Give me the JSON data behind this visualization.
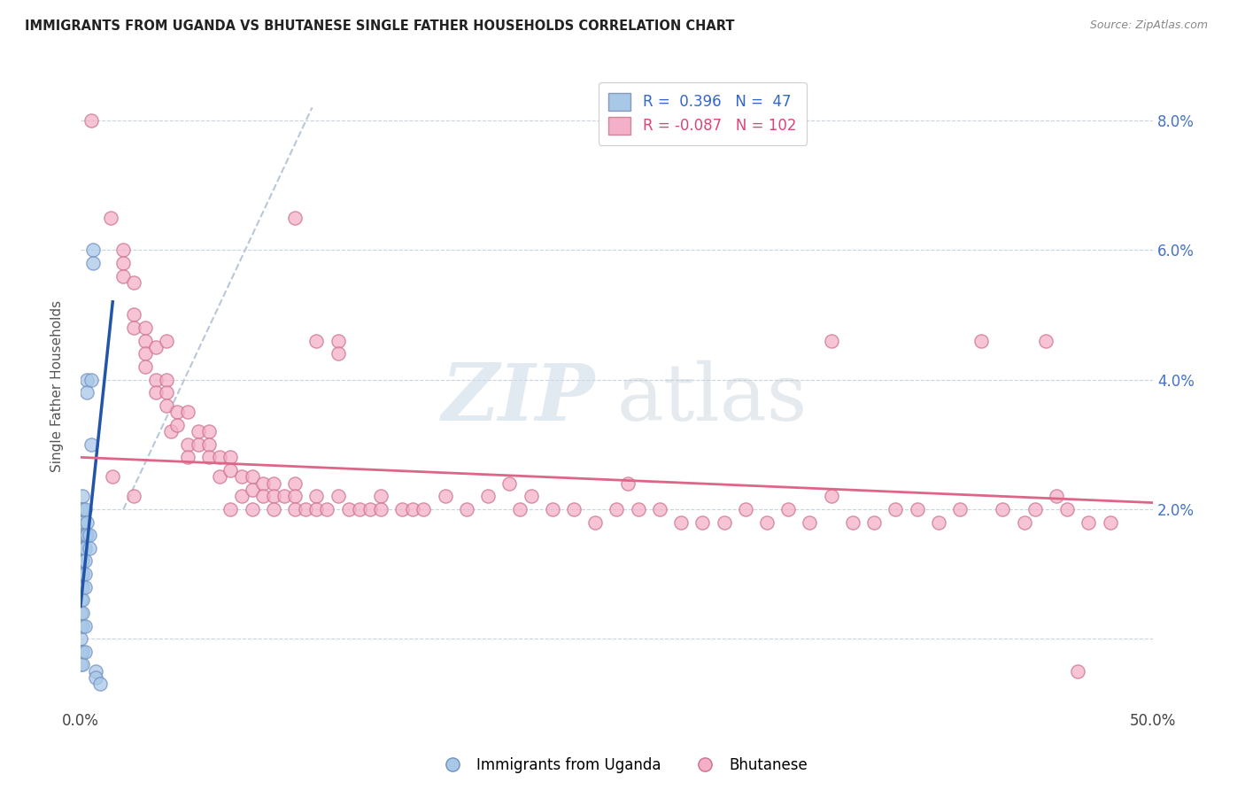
{
  "title": "IMMIGRANTS FROM UGANDA VS BHUTANESE SINGLE FATHER HOUSEHOLDS CORRELATION CHART",
  "source": "Source: ZipAtlas.com",
  "ylabel": "Single Father Households",
  "xlim": [
    0.0,
    0.5
  ],
  "ylim": [
    -0.01,
    0.088
  ],
  "blue_color": "#a8c8e8",
  "pink_color": "#f4b0c8",
  "blue_line_color": "#2255aa",
  "pink_line_color": "#dd6688",
  "dashed_line_color": "#b8c8d8",
  "watermark_zip": "ZIP",
  "watermark_atlas": "atlas",
  "uganda_points": [
    [
      0.0,
      0.02
    ],
    [
      0.0,
      0.018
    ],
    [
      0.0,
      0.016
    ],
    [
      0.0,
      0.014
    ],
    [
      0.0,
      0.012
    ],
    [
      0.0,
      0.01
    ],
    [
      0.0,
      0.008
    ],
    [
      0.0,
      0.006
    ],
    [
      0.0,
      0.004
    ],
    [
      0.0,
      0.002
    ],
    [
      0.0,
      0.0
    ],
    [
      0.0,
      -0.002
    ],
    [
      0.0,
      -0.004
    ],
    [
      0.001,
      0.022
    ],
    [
      0.001,
      0.02
    ],
    [
      0.001,
      0.018
    ],
    [
      0.001,
      0.016
    ],
    [
      0.001,
      0.014
    ],
    [
      0.001,
      0.012
    ],
    [
      0.001,
      0.01
    ],
    [
      0.001,
      0.008
    ],
    [
      0.001,
      0.006
    ],
    [
      0.001,
      0.004
    ],
    [
      0.001,
      0.002
    ],
    [
      0.001,
      -0.002
    ],
    [
      0.001,
      -0.004
    ],
    [
      0.002,
      0.02
    ],
    [
      0.002,
      0.016
    ],
    [
      0.002,
      0.014
    ],
    [
      0.002,
      0.012
    ],
    [
      0.002,
      0.01
    ],
    [
      0.002,
      0.008
    ],
    [
      0.002,
      0.002
    ],
    [
      0.002,
      -0.002
    ],
    [
      0.003,
      0.018
    ],
    [
      0.003,
      0.016
    ],
    [
      0.003,
      0.04
    ],
    [
      0.003,
      0.038
    ],
    [
      0.004,
      0.016
    ],
    [
      0.004,
      0.014
    ],
    [
      0.005,
      0.04
    ],
    [
      0.005,
      0.03
    ],
    [
      0.006,
      0.06
    ],
    [
      0.006,
      0.058
    ],
    [
      0.007,
      -0.005
    ],
    [
      0.007,
      -0.006
    ],
    [
      0.009,
      -0.007
    ]
  ],
  "bhutanese_points": [
    [
      0.005,
      0.08
    ],
    [
      0.014,
      0.065
    ],
    [
      0.02,
      0.06
    ],
    [
      0.02,
      0.058
    ],
    [
      0.02,
      0.056
    ],
    [
      0.025,
      0.055
    ],
    [
      0.025,
      0.05
    ],
    [
      0.025,
      0.048
    ],
    [
      0.03,
      0.048
    ],
    [
      0.03,
      0.046
    ],
    [
      0.03,
      0.044
    ],
    [
      0.03,
      0.042
    ],
    [
      0.035,
      0.045
    ],
    [
      0.035,
      0.04
    ],
    [
      0.035,
      0.038
    ],
    [
      0.04,
      0.046
    ],
    [
      0.04,
      0.04
    ],
    [
      0.04,
      0.038
    ],
    [
      0.04,
      0.036
    ],
    [
      0.042,
      0.032
    ],
    [
      0.045,
      0.035
    ],
    [
      0.045,
      0.033
    ],
    [
      0.05,
      0.035
    ],
    [
      0.05,
      0.03
    ],
    [
      0.05,
      0.028
    ],
    [
      0.055,
      0.032
    ],
    [
      0.055,
      0.03
    ],
    [
      0.06,
      0.032
    ],
    [
      0.06,
      0.03
    ],
    [
      0.06,
      0.028
    ],
    [
      0.065,
      0.028
    ],
    [
      0.065,
      0.025
    ],
    [
      0.07,
      0.028
    ],
    [
      0.07,
      0.026
    ],
    [
      0.07,
      0.02
    ],
    [
      0.075,
      0.025
    ],
    [
      0.075,
      0.022
    ],
    [
      0.08,
      0.025
    ],
    [
      0.08,
      0.023
    ],
    [
      0.08,
      0.02
    ],
    [
      0.085,
      0.024
    ],
    [
      0.085,
      0.022
    ],
    [
      0.09,
      0.024
    ],
    [
      0.09,
      0.022
    ],
    [
      0.09,
      0.02
    ],
    [
      0.095,
      0.022
    ],
    [
      0.1,
      0.065
    ],
    [
      0.1,
      0.024
    ],
    [
      0.1,
      0.022
    ],
    [
      0.1,
      0.02
    ],
    [
      0.105,
      0.02
    ],
    [
      0.11,
      0.046
    ],
    [
      0.11,
      0.022
    ],
    [
      0.11,
      0.02
    ],
    [
      0.115,
      0.02
    ],
    [
      0.12,
      0.046
    ],
    [
      0.12,
      0.044
    ],
    [
      0.12,
      0.022
    ],
    [
      0.125,
      0.02
    ],
    [
      0.13,
      0.02
    ],
    [
      0.135,
      0.02
    ],
    [
      0.14,
      0.022
    ],
    [
      0.14,
      0.02
    ],
    [
      0.15,
      0.02
    ],
    [
      0.155,
      0.02
    ],
    [
      0.16,
      0.02
    ],
    [
      0.17,
      0.022
    ],
    [
      0.18,
      0.02
    ],
    [
      0.19,
      0.022
    ],
    [
      0.2,
      0.024
    ],
    [
      0.205,
      0.02
    ],
    [
      0.21,
      0.022
    ],
    [
      0.22,
      0.02
    ],
    [
      0.23,
      0.02
    ],
    [
      0.24,
      0.018
    ],
    [
      0.25,
      0.02
    ],
    [
      0.255,
      0.024
    ],
    [
      0.26,
      0.02
    ],
    [
      0.27,
      0.02
    ],
    [
      0.28,
      0.018
    ],
    [
      0.29,
      0.018
    ],
    [
      0.3,
      0.018
    ],
    [
      0.31,
      0.02
    ],
    [
      0.32,
      0.018
    ],
    [
      0.33,
      0.02
    ],
    [
      0.34,
      0.018
    ],
    [
      0.35,
      0.046
    ],
    [
      0.35,
      0.022
    ],
    [
      0.36,
      0.018
    ],
    [
      0.37,
      0.018
    ],
    [
      0.38,
      0.02
    ],
    [
      0.39,
      0.02
    ],
    [
      0.4,
      0.018
    ],
    [
      0.41,
      0.02
    ],
    [
      0.42,
      0.046
    ],
    [
      0.43,
      0.02
    ],
    [
      0.44,
      0.018
    ],
    [
      0.445,
      0.02
    ],
    [
      0.45,
      0.046
    ],
    [
      0.455,
      0.022
    ],
    [
      0.46,
      0.02
    ],
    [
      0.465,
      -0.005
    ],
    [
      0.47,
      0.018
    ],
    [
      0.48,
      0.018
    ],
    [
      0.015,
      0.025
    ],
    [
      0.025,
      0.022
    ]
  ]
}
